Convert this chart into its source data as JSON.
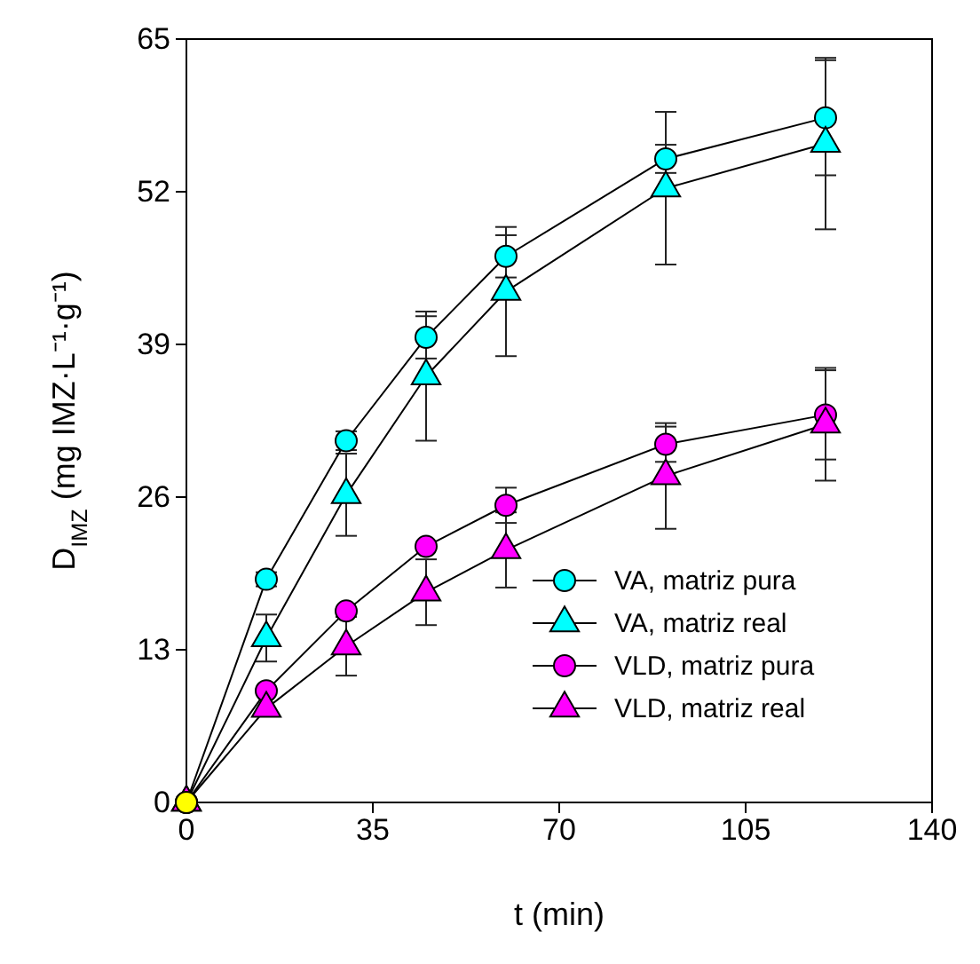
{
  "chart_data": {
    "type": "line",
    "xlabel": "t (min)",
    "ylabel": "D$_{IMZ}$ (mg IMZ·L⁻¹·g⁻¹)",
    "xlim": [
      0,
      140
    ],
    "xticks": [
      0,
      35,
      70,
      105,
      140
    ],
    "ylim": [
      0,
      65
    ],
    "yticks": [
      0,
      13,
      26,
      39,
      52,
      65
    ],
    "grid": false,
    "legend": "bottom right",
    "line_style": "solid",
    "series": [
      {
        "name": "VA, matriz pura",
        "color": "#00ffff",
        "marker": "circle",
        "x": [
          0,
          15,
          30,
          45,
          60,
          90,
          120
        ],
        "values": [
          0,
          19,
          30.8,
          39.6,
          46.5,
          54.8,
          58.3
        ],
        "errors": [
          null,
          0.6,
          0.8,
          1.8,
          1.8,
          1.2,
          4.9
        ]
      },
      {
        "name": "VA, matriz real",
        "color": "#00ffff",
        "marker": "triangle",
        "x": [
          0,
          15,
          30,
          45,
          60,
          90,
          120
        ],
        "values": [
          0,
          14,
          26.2,
          36.3,
          43.5,
          52.3,
          56.1
        ],
        "errors": [
          null,
          2,
          3.5,
          5.5,
          5.5,
          6.5,
          7.3
        ]
      },
      {
        "name": "VLD, matriz pura",
        "color": "#ff00ff",
        "marker": "circle",
        "x": [
          0,
          15,
          30,
          45,
          60,
          90,
          120
        ],
        "values": [
          0,
          9.5,
          16.3,
          21.8,
          25.3,
          30.5,
          33
        ],
        "errors": [
          null,
          null,
          null,
          null,
          1.5,
          1.5,
          3.8
        ]
      },
      {
        "name": "VLD, matriz real",
        "color": "#ff00ff",
        "marker": "triangle",
        "x": [
          0,
          15,
          30,
          45,
          60,
          90,
          120
        ],
        "values": [
          0,
          8,
          13.3,
          17.9,
          21.5,
          27.8,
          32.2
        ],
        "errors": [
          null,
          null,
          2.5,
          2.8,
          3.2,
          4.5,
          4.8
        ]
      },
      {
        "type": "scatter",
        "color": "#ffff00",
        "marker": "circle",
        "x": [
          0
        ],
        "values": [
          0
        ]
      }
    ]
  }
}
